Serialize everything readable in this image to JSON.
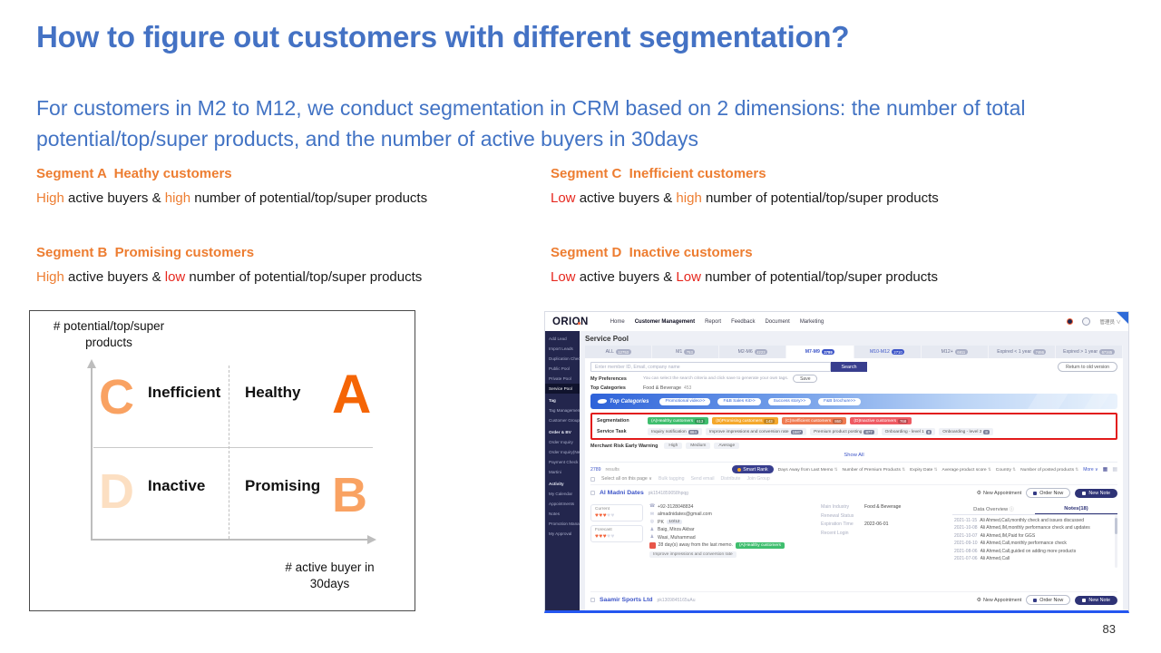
{
  "slide": {
    "title": "How to figure out customers with different segmentation?",
    "subtitle": "For customers in M2 to M12, we conduct segmentation in CRM based on 2 dimensions: the number of total potential/top/super products, and the number of active buyers in 30days",
    "page_number": "83",
    "colors": {
      "title_blue": "#4472C4",
      "accent_orange": "#ED7D31",
      "accent_red": "#E6271E"
    }
  },
  "segments": {
    "a": {
      "heading": "Segment A  Heathy customers",
      "w1": "High",
      "mid": " active buyers & ",
      "w2": "high",
      "rest": " number of potential/top/super products"
    },
    "c": {
      "heading": "Segment C  Inefficient customers",
      "w1": "Low",
      "mid": " active buyers & ",
      "w2": "high",
      "rest": " number of potential/top/super products"
    },
    "b": {
      "heading": "Segment B  Promising customers",
      "w1": "High",
      "mid": " active buyers & ",
      "w2": "low",
      "rest": " number of potential/top/super products"
    },
    "d": {
      "heading": "Segment D  Inactive customers",
      "w1": "Low",
      "mid": " active buyers & ",
      "w2": "Low",
      "rest": " number of potential/top/super products"
    }
  },
  "quadrant": {
    "y_label_1": "# potential/top/super",
    "y_label_2": "products",
    "x_label_1": "# active buyer in",
    "x_label_2": "30days",
    "top_left_letter": "C",
    "top_left_label": "Inefficient",
    "top_right_label": "Healthy",
    "top_right_letter": "A",
    "bottom_left_letter": "D",
    "bottom_left_label": "Inactive",
    "bottom_right_label": "Promising",
    "bottom_right_letter": "B",
    "letter_colors": {
      "a": "#F56505",
      "b": "#F9A262",
      "c": "#F9A262",
      "d": "#FCDFC2"
    }
  },
  "crm": {
    "logo": "ORION",
    "nav": [
      "Home",
      "Customer Management",
      "Report",
      "Feedback",
      "Document",
      "Marketing"
    ],
    "user_label": "管理员 ∨",
    "sidebar": [
      "Add Lead",
      "Import Leads",
      "Duplication Check",
      "Public Pool",
      "Private Pool",
      "Service Pool",
      "Tag",
      "Tag Management",
      "Customer Groups",
      "Order & BV",
      "Order Inquiry",
      "Order Inquiry(New)",
      "Payment Check",
      "Martini",
      "Activity",
      "My Calendar",
      "Appointments",
      "Notes",
      "Promotion Manag...",
      "My Approval"
    ],
    "page_title": "Service Pool",
    "tabs": [
      {
        "label": "ALL",
        "count": "12753"
      },
      {
        "label": "M1",
        "count": "753"
      },
      {
        "label": "M2-M6",
        "count": "4223"
      },
      {
        "label": "M7-M9",
        "count": "2789"
      },
      {
        "label": "M10-M12",
        "count": "2710"
      },
      {
        "label": "M12+",
        "count": "6811"
      },
      {
        "label": "Expired < 1 year",
        "count": "7466"
      },
      {
        "label": "Expired > 1 year",
        "count": "67345"
      }
    ],
    "search": {
      "placeholder": "Enter member ID, Email, company name",
      "button": "Search",
      "return_button": "Return to old version"
    },
    "preferences": {
      "label": "My Preferences",
      "hint": "You can select the search criteria and click save to generate your own tags.",
      "save": "Save"
    },
    "top_categories": {
      "label": "Top Categories",
      "value": "Food & Beverage",
      "count": "453"
    },
    "banner": {
      "title": "Top Categories",
      "pills": [
        "Promotional video>>",
        "F&B Sales Kit>>",
        "Success story>>",
        "F&B brochure>>"
      ]
    },
    "segmentation": {
      "label": "Segmentation",
      "pills": [
        {
          "label": "(A)Healthy customers",
          "count": "613",
          "color": "#3FBE6E"
        },
        {
          "label": "(B)Promising customers",
          "count": "143",
          "color": "#F5A82C"
        },
        {
          "label": "(C)Inefficient customers",
          "count": "860",
          "color": "#F07C52"
        },
        {
          "label": "(D)Inactive customers",
          "count": "768",
          "color": "#EF5B63"
        }
      ]
    },
    "service_task": {
      "label": "Service Task",
      "pills": [
        {
          "label": "Inquiry notification",
          "count": "884"
        },
        {
          "label": "Improve impressions and conversion rate",
          "count": "1587"
        },
        {
          "label": "Premium product posting",
          "count": "877"
        },
        {
          "label": "Onboarding - level 1",
          "count": "8"
        },
        {
          "label": "Onboarding - level 2",
          "count": "8"
        }
      ]
    },
    "merchant_risk": {
      "label": "Merchant Risk Early Warning",
      "options": [
        "High",
        "Medium",
        "Average"
      ]
    },
    "show_all": "Show All",
    "results": {
      "count": "2789",
      "label": "results",
      "smart_rank": "Smart Rank",
      "sorts": [
        "Days Away from Last Memo",
        "Number of Premium Products",
        "Expiry Date",
        "Average product score",
        "Country",
        "Number of posted products"
      ],
      "more": "More ∨"
    },
    "select_bar": {
      "label": "Select all on this page ∨",
      "actions": [
        "Bulk tagging",
        "Send email",
        "Distribute",
        "Join Group"
      ]
    },
    "buttons": {
      "new_appointment": "New Appointment",
      "order_now": "Order Now",
      "new_note": "New Note"
    },
    "customer1": {
      "name": "Al Madni Dates",
      "id": "pk1541859058hpqg"
    },
    "customer2": {
      "name": "Saamir Sports Ltd",
      "id": "pk1309845165uAu"
    },
    "card": {
      "current_label": "Current",
      "forecast_label": "Forecast",
      "phone": "+92-3128048834",
      "email": "almadnidates@gmail.com",
      "country": "PK",
      "country_badge": "10/12",
      "contact1": "Baig, Mirza Akbar",
      "contact2": "Wasi, Muhammad",
      "memo": "28 day(s) away from the last memo.",
      "seg_pill": "(A)Healthy customers",
      "task_pill": "Improve impressions and conversion rate",
      "info": [
        {
          "label": "Main Industry",
          "value": "Food & Beverage"
        },
        {
          "label": "Renewal Status",
          "value": ""
        },
        {
          "label": "Expiration Time",
          "value": "2022-06-01"
        },
        {
          "label": "Recent Login",
          "value": ""
        }
      ],
      "tab1": "Data Overview",
      "tab1_info": "ⓘ",
      "tab2": "Notes(18)",
      "notes": [
        {
          "date": "2021-11-15",
          "text": "Ali Ahmed,Call,monthly check and issues discussed"
        },
        {
          "date": "2021-10-08",
          "text": "Ali Ahmed,IM,monthly performance check and updates"
        },
        {
          "date": "2021-10-07",
          "text": "Ali Ahmed,IM,Paid for GGS"
        },
        {
          "date": "2021-09-10",
          "text": "Ali Ahmed,Call,monthly performance check"
        },
        {
          "date": "2021-08-06",
          "text": "Ali Ahmed,Call,guided on adding more products"
        },
        {
          "date": "2021-07-06",
          "text": "Ali Ahmed,Call"
        }
      ]
    }
  }
}
